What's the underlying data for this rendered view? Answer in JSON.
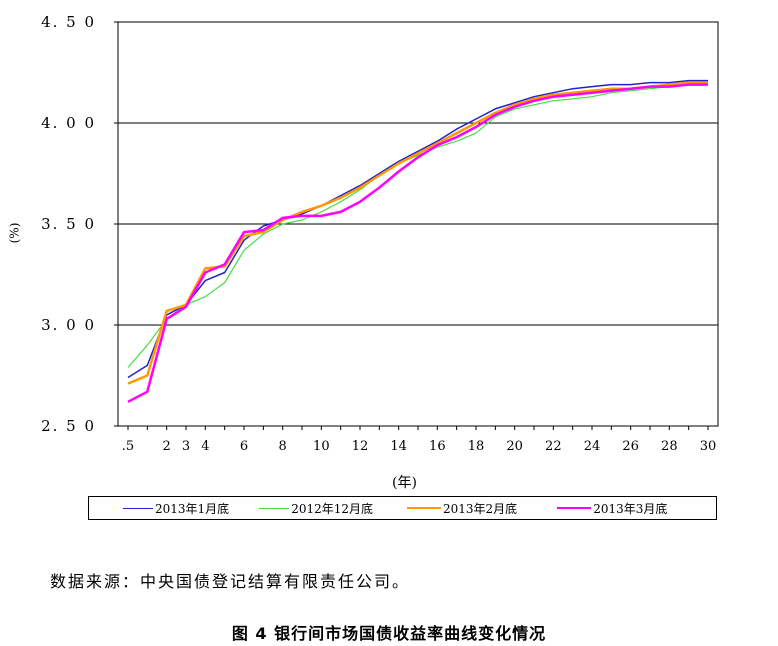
{
  "chart_data": {
    "type": "line",
    "title": "",
    "xlabel": "(年)",
    "ylabel": "(%)",
    "ylim": [
      2.5,
      4.5
    ],
    "yticks": [
      "2.50",
      "3.00",
      "3.50",
      "4.00",
      "4.50"
    ],
    "xtick_labels": [
      ".5",
      "2",
      "3",
      "4",
      "6",
      "8",
      "10",
      "12",
      "14",
      "16",
      "18",
      "20",
      "22",
      "24",
      "26",
      "28",
      "30"
    ],
    "x": [
      0.5,
      1,
      2,
      3,
      4,
      5,
      6,
      7,
      8,
      9,
      10,
      11,
      12,
      13,
      14,
      15,
      16,
      17,
      18,
      19,
      20,
      21,
      22,
      23,
      24,
      25,
      26,
      27,
      28,
      29,
      30
    ],
    "grid": true,
    "legend_position": "bottom",
    "series": [
      {
        "name": "2013年1月底",
        "color": "#2222cc",
        "values": [
          2.74,
          2.8,
          3.05,
          3.1,
          3.22,
          3.26,
          3.42,
          3.49,
          3.52,
          3.55,
          3.59,
          3.64,
          3.69,
          3.75,
          3.81,
          3.86,
          3.91,
          3.97,
          4.02,
          4.07,
          4.1,
          4.13,
          4.15,
          4.17,
          4.18,
          4.19,
          4.19,
          4.2,
          4.2,
          4.21,
          4.21
        ]
      },
      {
        "name": "2012年12月底",
        "color": "#44dd44",
        "values": [
          2.79,
          2.9,
          3.03,
          3.1,
          3.14,
          3.21,
          3.37,
          3.45,
          3.5,
          3.52,
          3.56,
          3.61,
          3.67,
          3.74,
          3.8,
          3.84,
          3.88,
          3.91,
          3.95,
          4.03,
          4.07,
          4.09,
          4.11,
          4.12,
          4.13,
          4.15,
          4.16,
          4.17,
          4.18,
          4.19,
          4.2
        ]
      },
      {
        "name": "2013年2月底",
        "color": "#ff9900",
        "values": [
          2.71,
          2.75,
          3.07,
          3.1,
          3.28,
          3.29,
          3.44,
          3.46,
          3.52,
          3.56,
          3.59,
          3.63,
          3.68,
          3.74,
          3.8,
          3.85,
          3.9,
          3.95,
          4.0,
          4.05,
          4.09,
          4.12,
          4.14,
          4.15,
          4.16,
          4.17,
          4.17,
          4.18,
          4.19,
          4.2,
          4.2
        ]
      },
      {
        "name": "2013年3月底",
        "color": "#ff00ff",
        "values": [
          2.62,
          2.67,
          3.03,
          3.09,
          3.26,
          3.3,
          3.46,
          3.47,
          3.53,
          3.54,
          3.54,
          3.56,
          3.61,
          3.68,
          3.76,
          3.83,
          3.89,
          3.93,
          3.98,
          4.04,
          4.08,
          4.11,
          4.13,
          4.14,
          4.15,
          4.16,
          4.17,
          4.18,
          4.18,
          4.19,
          4.19
        ]
      }
    ]
  },
  "footer": {
    "source": "数据来源：中央国债登记结算有限责任公司。",
    "caption": "图 4 银行间市场国债收益率曲线变化情况"
  }
}
